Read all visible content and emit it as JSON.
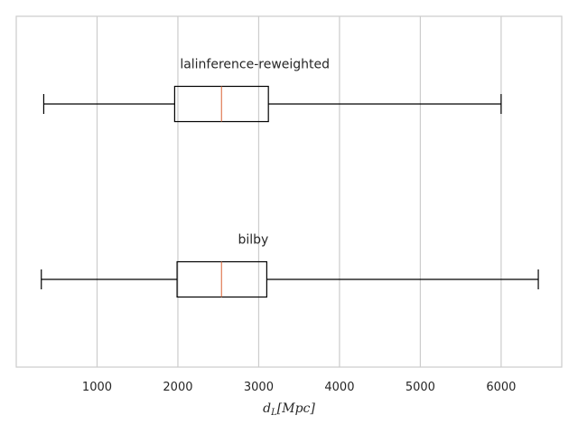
{
  "chart_data": {
    "type": "boxplot",
    "orientation": "horizontal",
    "xlabel": {
      "main": "d",
      "sub": "L",
      "rest": "[Mpc]"
    },
    "xlim": [
      0,
      6750
    ],
    "x_ticks": [
      1000,
      2000,
      3000,
      4000,
      5000,
      6000
    ],
    "x_tick_labels": [
      "1000",
      "2000",
      "3000",
      "4000",
      "5000",
      "6000"
    ],
    "grid": {
      "x": true,
      "y": false
    },
    "colors": {
      "box": "#000000",
      "median": "#e07b54",
      "grid": "#cccccc",
      "frame": "#cccccc",
      "background": "#ffffff"
    },
    "series": [
      {
        "name": "lalinference-reweighted",
        "whisker_low": 340,
        "q1": 1960,
        "median": 2540,
        "q3": 3120,
        "whisker_high": 6000
      },
      {
        "name": "bilby",
        "whisker_low": 310,
        "q1": 1990,
        "median": 2540,
        "q3": 3100,
        "whisker_high": 6460
      }
    ]
  }
}
